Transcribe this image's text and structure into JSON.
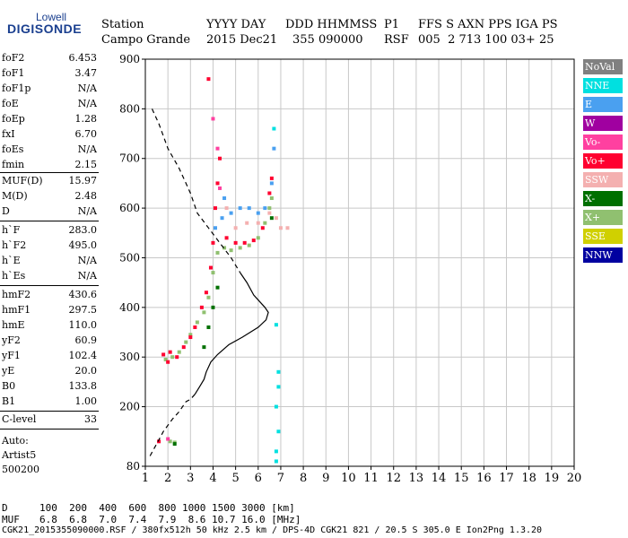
{
  "logo": {
    "top": "Lowell",
    "main": "DIGISONDE"
  },
  "header": {
    "labels": [
      {
        "text": "Station"
      },
      {
        "text": "YYYY DAY"
      },
      {
        "text": "DDD HHMMSS"
      },
      {
        "text": "P1"
      },
      {
        "text": "FFS S AXN PPS IGA PS"
      }
    ],
    "values": [
      {
        "text": "Campo Grande"
      },
      {
        "text": "2015 Dec21"
      },
      {
        "text": "355 090000"
      },
      {
        "text": "RSF"
      },
      {
        "text": "005  2 713 100 03+ 25"
      }
    ]
  },
  "params": {
    "group1": [
      {
        "k": "foF2",
        "v": "6.453"
      },
      {
        "k": "foF1",
        "v": "3.47"
      },
      {
        "k": "foF1p",
        "v": "N/A"
      },
      {
        "k": "foE",
        "v": "N/A"
      },
      {
        "k": "foEp",
        "v": "1.28"
      },
      {
        "k": "fxI",
        "v": "6.70"
      },
      {
        "k": "foEs",
        "v": "N/A"
      },
      {
        "k": "fmin",
        "v": "2.15"
      }
    ],
    "group2": [
      {
        "k": "MUF(D)",
        "v": "15.97"
      },
      {
        "k": "M(D)",
        "v": "2.48"
      },
      {
        "k": "D",
        "v": "N/A"
      }
    ],
    "group3": [
      {
        "k": "h`F",
        "v": "283.0"
      },
      {
        "k": "h`F2",
        "v": "495.0"
      },
      {
        "k": "h`E",
        "v": "N/A"
      },
      {
        "k": "h`Es",
        "v": "N/A"
      }
    ],
    "group4": [
      {
        "k": "hmF2",
        "v": "430.6"
      },
      {
        "k": "hmF1",
        "v": "297.5"
      },
      {
        "k": "hmE",
        "v": "110.0"
      },
      {
        "k": "yF2",
        "v": "60.9"
      },
      {
        "k": "yF1",
        "v": "102.4"
      },
      {
        "k": "yE",
        "v": "20.0"
      },
      {
        "k": "B0",
        "v": "133.8"
      },
      {
        "k": "B1",
        "v": "1.00"
      }
    ],
    "group5": [
      {
        "k": "C-level",
        "v": "33"
      }
    ],
    "auto": [
      "Auto:",
      "Artist5",
      "500200"
    ]
  },
  "legend": [
    {
      "label": "NoVal",
      "color": "#808080",
      "text_color": "#ffffff"
    },
    {
      "label": "NNE",
      "color": "#00e0e0",
      "text_color": "#ffffff"
    },
    {
      "label": "E",
      "color": "#4aa0f0",
      "text_color": "#ffffff"
    },
    {
      "label": "W",
      "color": "#a000a0",
      "text_color": "#ffffff"
    },
    {
      "label": "Vo-",
      "color": "#ff40a0",
      "text_color": "#ffffff"
    },
    {
      "label": "Vo+",
      "color": "#ff0030",
      "text_color": "#ffffff"
    },
    {
      "label": "SSW",
      "color": "#f4b0b0",
      "text_color": "#ffffff"
    },
    {
      "label": "X-",
      "color": "#007000",
      "text_color": "#ffffff"
    },
    {
      "label": "X+",
      "color": "#90c070",
      "text_color": "#ffffff"
    },
    {
      "label": "SSE",
      "color": "#d0d000",
      "text_color": "#ffffff"
    },
    {
      "label": "NNW",
      "color": "#0000a0",
      "text_color": "#ffffff"
    }
  ],
  "footer": {
    "d_label": "D",
    "d_values": "100  200  400  600  800 1000 1500 3000 [km]",
    "muf_label": "MUF",
    "muf_values": "6.8  6.8  7.0  7.4  7.9  8.6 10.7 16.0 [MHz]",
    "info": "CGK21_2015355090000.RSF / 380fx512h 50 kHz 2.5 km / DPS-4D CGK21 821 / 20.5 S 305.0 E Ion2Png 1.3.20"
  },
  "chart_data": {
    "type": "scatter",
    "title": "",
    "xlabel": "",
    "ylabel": "",
    "xlim": [
      1,
      20
    ],
    "ylim": [
      80,
      900
    ],
    "x_ticks": [
      1,
      2,
      3,
      4,
      5,
      6,
      7,
      8,
      9,
      10,
      11,
      12,
      13,
      14,
      15,
      16,
      17,
      18,
      19,
      20
    ],
    "y_ticks": [
      80,
      200,
      300,
      400,
      500,
      600,
      700,
      800,
      900
    ],
    "grid": true,
    "series": [
      {
        "name": "X+",
        "points": [
          [
            1.9,
            295
          ],
          [
            2.2,
            300
          ],
          [
            2.5,
            310
          ],
          [
            2.8,
            330
          ],
          [
            3.0,
            345
          ],
          [
            3.3,
            370
          ],
          [
            3.6,
            390
          ],
          [
            3.8,
            420
          ],
          [
            4.0,
            470
          ],
          [
            4.2,
            510
          ],
          [
            4.5,
            520
          ],
          [
            4.8,
            515
          ],
          [
            5.2,
            520
          ],
          [
            5.6,
            525
          ],
          [
            6.0,
            540
          ],
          [
            6.3,
            570
          ],
          [
            6.5,
            600
          ],
          [
            6.6,
            620
          ],
          [
            2.1,
            130
          ],
          [
            2.3,
            128
          ]
        ]
      },
      {
        "name": "Vo+",
        "points": [
          [
            1.8,
            305
          ],
          [
            2.0,
            290
          ],
          [
            2.1,
            310
          ],
          [
            2.4,
            300
          ],
          [
            2.7,
            320
          ],
          [
            3.0,
            340
          ],
          [
            3.2,
            360
          ],
          [
            3.5,
            400
          ],
          [
            3.7,
            430
          ],
          [
            3.9,
            480
          ],
          [
            4.0,
            530
          ],
          [
            4.1,
            600
          ],
          [
            4.2,
            650
          ],
          [
            4.3,
            700
          ],
          [
            4.6,
            540
          ],
          [
            5.0,
            530
          ],
          [
            5.4,
            530
          ],
          [
            5.8,
            535
          ],
          [
            6.2,
            560
          ],
          [
            6.5,
            630
          ],
          [
            6.6,
            660
          ],
          [
            3.8,
            860
          ],
          [
            1.6,
            130
          ]
        ]
      },
      {
        "name": "E",
        "points": [
          [
            4.1,
            560
          ],
          [
            4.4,
            580
          ],
          [
            4.8,
            590
          ],
          [
            5.2,
            600
          ],
          [
            5.6,
            600
          ],
          [
            6.0,
            590
          ],
          [
            6.3,
            600
          ],
          [
            6.6,
            650
          ],
          [
            6.7,
            720
          ],
          [
            4.5,
            620
          ]
        ]
      },
      {
        "name": "NNE",
        "points": [
          [
            6.8,
            90
          ],
          [
            6.8,
            110
          ],
          [
            6.9,
            150
          ],
          [
            6.8,
            200
          ],
          [
            6.9,
            240
          ],
          [
            6.9,
            270
          ],
          [
            6.8,
            365
          ],
          [
            6.7,
            760
          ]
        ]
      },
      {
        "name": "SSW",
        "points": [
          [
            5.0,
            560
          ],
          [
            5.5,
            570
          ],
          [
            6.0,
            570
          ],
          [
            6.5,
            590
          ],
          [
            6.8,
            580
          ],
          [
            7.0,
            560
          ],
          [
            7.3,
            560
          ],
          [
            4.6,
            600
          ]
        ]
      },
      {
        "name": "X-",
        "points": [
          [
            3.6,
            320
          ],
          [
            3.8,
            360
          ],
          [
            4.0,
            400
          ],
          [
            4.2,
            440
          ],
          [
            6.6,
            580
          ],
          [
            2.3,
            125
          ]
        ]
      },
      {
        "name": "Vo-",
        "points": [
          [
            4.2,
            720
          ],
          [
            4.0,
            780
          ],
          [
            4.3,
            640
          ],
          [
            2.0,
            135
          ]
        ]
      }
    ],
    "profile_curve": [
      [
        1.3,
        800
      ],
      [
        1.6,
        770
      ],
      [
        2.0,
        720
      ],
      [
        2.5,
        680
      ],
      [
        2.8,
        650
      ],
      [
        3.0,
        630
      ],
      [
        3.3,
        590
      ],
      [
        3.8,
        560
      ],
      [
        4.3,
        530
      ],
      [
        4.8,
        500
      ],
      [
        5.2,
        470
      ],
      [
        5.5,
        450
      ],
      [
        5.8,
        425
      ],
      [
        6.1,
        410
      ],
      [
        6.3,
        400
      ],
      [
        6.45,
        390
      ],
      [
        6.35,
        375
      ],
      [
        6.0,
        360
      ],
      [
        5.3,
        340
      ],
      [
        4.7,
        325
      ],
      [
        4.2,
        305
      ],
      [
        3.9,
        290
      ],
      [
        3.7,
        270
      ],
      [
        3.6,
        255
      ],
      [
        3.4,
        240
      ],
      [
        3.2,
        225
      ],
      [
        3.0,
        215
      ],
      [
        2.8,
        210
      ],
      [
        2.5,
        190
      ],
      [
        2.2,
        175
      ],
      [
        1.8,
        150
      ],
      [
        1.5,
        125
      ],
      [
        1.2,
        100
      ]
    ]
  }
}
